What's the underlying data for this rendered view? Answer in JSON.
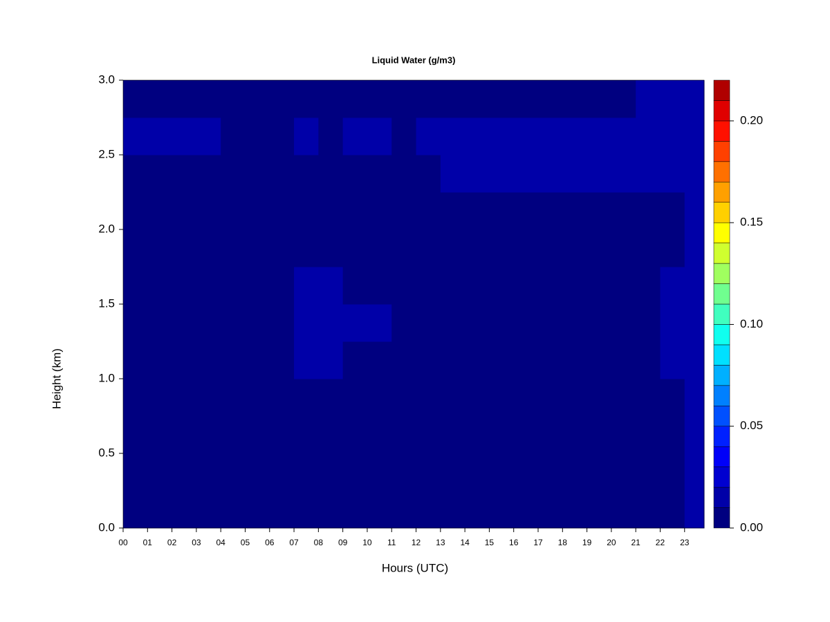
{
  "chart_data": {
    "type": "heatmap",
    "title": "Liquid Water (g/m3)",
    "xlabel": "Hours (UTC)",
    "ylabel": "Height (km)",
    "x": [
      0,
      1,
      2,
      3,
      4,
      5,
      6,
      7,
      8,
      9,
      10,
      11,
      12,
      13,
      14,
      15,
      16,
      17,
      18,
      19,
      20,
      21,
      22,
      23,
      23.8
    ],
    "y": [
      0,
      0.25,
      0.5,
      0.75,
      1,
      1.25,
      1.5,
      1.75,
      2,
      2.25,
      2.5,
      2.75,
      3
    ],
    "z": [
      [
        0.004,
        0.004,
        0.004,
        0.004,
        0.004,
        0.004,
        0.004,
        0.004,
        0.004,
        0.004,
        0.004,
        0.004,
        0.004,
        0.004,
        0.004,
        0.004,
        0.004,
        0.004,
        0.004,
        0.004,
        0.004,
        0.004,
        0.004,
        0.015
      ],
      [
        0.004,
        0.004,
        0.004,
        0.004,
        0.004,
        0.004,
        0.004,
        0.004,
        0.004,
        0.004,
        0.004,
        0.004,
        0.004,
        0.004,
        0.004,
        0.004,
        0.004,
        0.004,
        0.004,
        0.004,
        0.004,
        0.004,
        0.004,
        0.015
      ],
      [
        0.004,
        0.004,
        0.004,
        0.004,
        0.004,
        0.004,
        0.004,
        0.004,
        0.004,
        0.004,
        0.004,
        0.004,
        0.004,
        0.004,
        0.004,
        0.004,
        0.004,
        0.004,
        0.004,
        0.004,
        0.004,
        0.004,
        0.004,
        0.015
      ],
      [
        0.004,
        0.004,
        0.004,
        0.004,
        0.004,
        0.004,
        0.004,
        0.004,
        0.004,
        0.004,
        0.004,
        0.004,
        0.004,
        0.004,
        0.004,
        0.004,
        0.004,
        0.004,
        0.004,
        0.004,
        0.004,
        0.004,
        0.004,
        0.015
      ],
      [
        0.004,
        0.004,
        0.004,
        0.004,
        0.004,
        0.004,
        0.004,
        0.011,
        0.011,
        0.004,
        0.004,
        0.004,
        0.004,
        0.004,
        0.004,
        0.004,
        0.004,
        0.004,
        0.004,
        0.004,
        0.004,
        0.004,
        0.011,
        0.015
      ],
      [
        0.004,
        0.004,
        0.004,
        0.004,
        0.004,
        0.004,
        0.004,
        0.011,
        0.011,
        0.011,
        0.011,
        0.004,
        0.004,
        0.004,
        0.004,
        0.004,
        0.004,
        0.004,
        0.004,
        0.004,
        0.004,
        0.004,
        0.011,
        0.015
      ],
      [
        0.004,
        0.004,
        0.004,
        0.004,
        0.004,
        0.004,
        0.004,
        0.011,
        0.011,
        0.004,
        0.004,
        0.004,
        0.004,
        0.004,
        0.004,
        0.004,
        0.004,
        0.004,
        0.004,
        0.004,
        0.004,
        0.004,
        0.011,
        0.015
      ],
      [
        0.004,
        0.004,
        0.004,
        0.004,
        0.004,
        0.004,
        0.004,
        0.004,
        0.004,
        0.004,
        0.004,
        0.004,
        0.004,
        0.004,
        0.004,
        0.004,
        0.004,
        0.004,
        0.004,
        0.004,
        0.004,
        0.004,
        0.004,
        0.015
      ],
      [
        0.004,
        0.004,
        0.004,
        0.004,
        0.004,
        0.004,
        0.004,
        0.004,
        0.004,
        0.004,
        0.004,
        0.004,
        0.004,
        0.004,
        0.004,
        0.004,
        0.004,
        0.004,
        0.004,
        0.004,
        0.004,
        0.004,
        0.004,
        0.015
      ],
      [
        0.004,
        0.004,
        0.004,
        0.004,
        0.004,
        0.004,
        0.004,
        0.004,
        0.004,
        0.004,
        0.004,
        0.004,
        0.004,
        0.012,
        0.012,
        0.012,
        0.012,
        0.012,
        0.012,
        0.011,
        0.011,
        0.011,
        0.012,
        0.015
      ],
      [
        0.011,
        0.011,
        0.011,
        0.011,
        0.004,
        0.004,
        0.004,
        0.011,
        0.004,
        0.011,
        0.011,
        0.004,
        0.012,
        0.012,
        0.012,
        0.012,
        0.012,
        0.012,
        0.012,
        0.012,
        0.012,
        0.012,
        0.012,
        0.015
      ],
      [
        0.004,
        0.004,
        0.004,
        0.004,
        0.004,
        0.004,
        0.004,
        0.004,
        0.004,
        0.004,
        0.004,
        0.004,
        0.004,
        0.004,
        0.004,
        0.004,
        0.004,
        0.004,
        0.004,
        0.004,
        0.004,
        0.011,
        0.011,
        0.015
      ]
    ],
    "levels": [
      0,
      0.01,
      0.02,
      0.03,
      0.04,
      0.05,
      0.06,
      0.07,
      0.08,
      0.09,
      0.1,
      0.11,
      0.12,
      0.13,
      0.14,
      0.15,
      0.16,
      0.17,
      0.18,
      0.19,
      0.2,
      0.21,
      0.22
    ],
    "colors": [
      "#000080",
      "#0000a8",
      "#0000d0",
      "#0000f8",
      "#0020ff",
      "#0050ff",
      "#0080ff",
      "#00b0ff",
      "#00e0ff",
      "#10ffef",
      "#40ffbf",
      "#70ff8f",
      "#a0ff5f",
      "#d0ff2f",
      "#ffff00",
      "#ffd000",
      "#ffa000",
      "#ff7000",
      "#ff4000",
      "#ff1000",
      "#e00000",
      "#b00000"
    ],
    "xlim": [
      0,
      23.8
    ],
    "ylim": [
      0,
      3
    ],
    "xticks": [
      {
        "value": 0,
        "label": "00"
      },
      {
        "value": 1,
        "label": "01"
      },
      {
        "value": 2,
        "label": "02"
      },
      {
        "value": 3,
        "label": "03"
      },
      {
        "value": 4,
        "label": "04"
      },
      {
        "value": 5,
        "label": "05"
      },
      {
        "value": 6,
        "label": "06"
      },
      {
        "value": 7,
        "label": "07"
      },
      {
        "value": 8,
        "label": "08"
      },
      {
        "value": 9,
        "label": "09"
      },
      10,
      11,
      12,
      13,
      14,
      15,
      16,
      17,
      18,
      19,
      20,
      21,
      22,
      23
    ],
    "yticks": [
      {
        "value": 0,
        "label": "0.0"
      },
      0.5,
      {
        "value": 1,
        "label": "1.0"
      },
      1.5,
      {
        "value": 2,
        "label": "2.0"
      },
      2.5,
      {
        "value": 3,
        "label": "3.0"
      }
    ],
    "clim": [
      0,
      0.22
    ],
    "cticks": [
      {
        "value": 0,
        "label": "0.00"
      },
      {
        "value": 0.05,
        "label": "0.05"
      },
      {
        "value": 0.1,
        "label": "0.10"
      },
      {
        "value": 0.15,
        "label": "0.15"
      },
      {
        "value": 0.2,
        "label": "0.20"
      }
    ]
  }
}
